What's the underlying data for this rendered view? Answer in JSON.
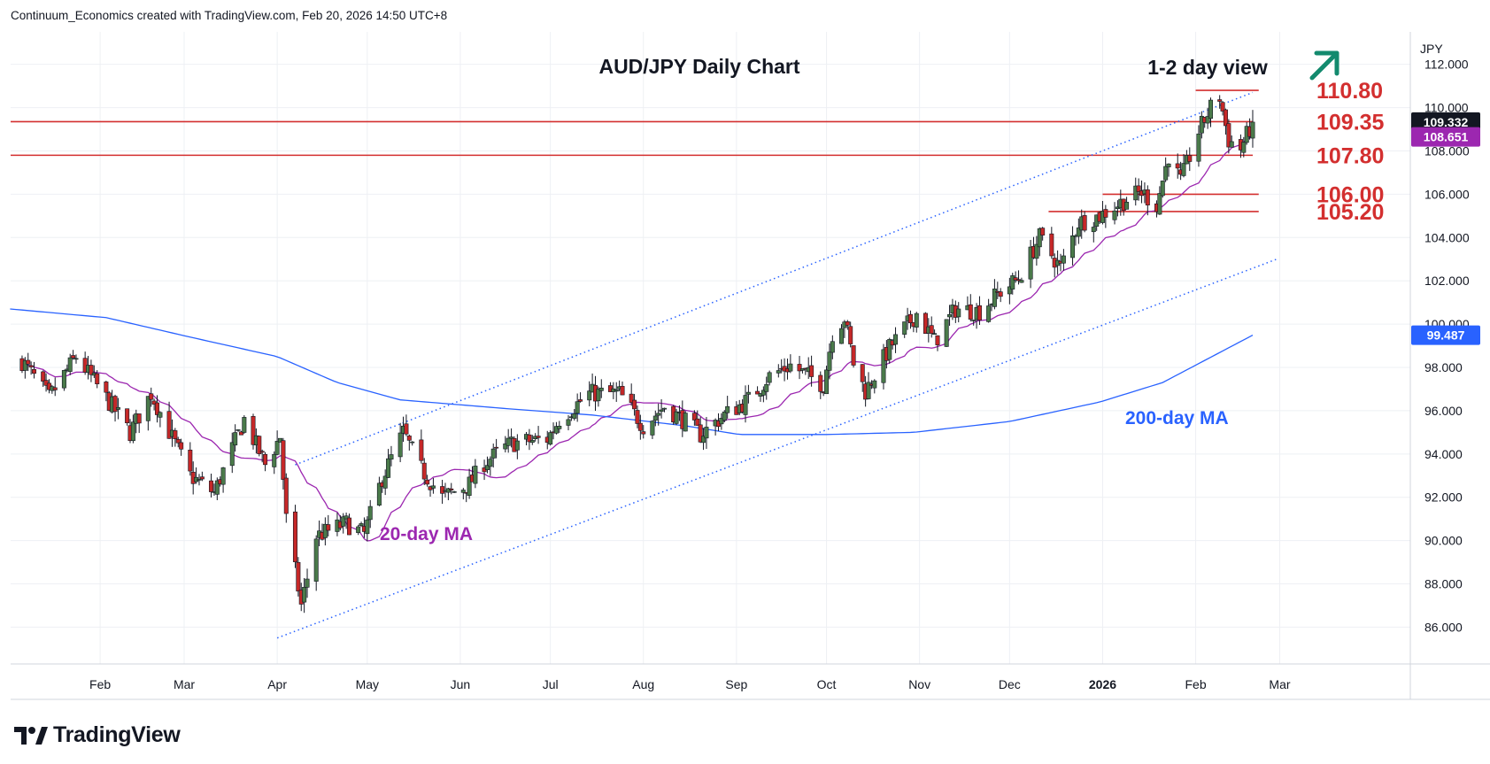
{
  "header": {
    "text": "Continuum_Economics created with TradingView.com, Feb 20, 2026 14:50 UTC+8"
  },
  "logo": {
    "text": "TradingView"
  },
  "chart_data": {
    "type": "candlestick",
    "title": "AUD/JPY Daily Chart",
    "subtitle": "1-2 day view",
    "view_arrow": "up-right-arrow",
    "currency_label": "JPY",
    "ylim": [
      84.3,
      113.5
    ],
    "y_ticks": [
      "112.000",
      "110.000",
      "108.000",
      "106.000",
      "104.000",
      "102.000",
      "100.000",
      "98.000",
      "96.000",
      "94.000",
      "92.000",
      "90.000",
      "88.000",
      "86.000"
    ],
    "x_ticks": [
      "Feb",
      "Mar",
      "Apr",
      "May",
      "Jun",
      "Jul",
      "Aug",
      "Sep",
      "Oct",
      "Nov",
      "Dec",
      "2026",
      "Feb",
      "Mar"
    ],
    "grid": true,
    "colors": {
      "up": "#4a7a4a",
      "down": "#c62828",
      "level": "#d32f2f",
      "ma20": "#9c27b0",
      "ma200": "#2962ff",
      "channel": "#2962ff",
      "arrow": "#138a6e",
      "price_badge": "#131722",
      "ma_badge": "#2962ff"
    },
    "price_labels": {
      "last": "109.332",
      "ma20": "108.651",
      "ma200": "99.487"
    },
    "levels": [
      {
        "label": "110.80",
        "value": 110.8
      },
      {
        "label": "109.35",
        "value": 109.35
      },
      {
        "label": "107.80",
        "value": 107.8
      },
      {
        "label": "106.00",
        "value": 106.0
      },
      {
        "label": "105.20",
        "value": 105.2
      }
    ],
    "annotations": {
      "ma20_label": "20-day MA",
      "ma200_label": "200-day MA"
    },
    "price_anchors": [
      [
        "2025-01-06",
        98.3
      ],
      [
        "2025-01-15",
        96.6
      ],
      [
        "2025-01-24",
        98.5
      ],
      [
        "2025-02-05",
        96.2
      ],
      [
        "2025-02-11",
        95.0
      ],
      [
        "2025-02-18",
        96.8
      ],
      [
        "2025-03-03",
        93.0
      ],
      [
        "2025-03-11",
        92.2
      ],
      [
        "2025-03-21",
        95.6
      ],
      [
        "2025-03-28",
        93.5
      ],
      [
        "2025-04-02",
        94.8
      ],
      [
        "2025-04-04",
        91.0
      ],
      [
        "2025-04-09",
        87.0
      ],
      [
        "2025-04-14",
        90.2
      ],
      [
        "2025-04-24",
        90.8
      ],
      [
        "2025-04-30",
        90.3
      ],
      [
        "2025-05-06",
        92.9
      ],
      [
        "2025-05-13",
        95.0
      ],
      [
        "2025-05-19",
        93.3
      ],
      [
        "2025-05-26",
        92.0
      ],
      [
        "2025-06-04",
        92.6
      ],
      [
        "2025-06-09",
        93.6
      ],
      [
        "2025-06-18",
        94.5
      ],
      [
        "2025-06-30",
        94.7
      ],
      [
        "2025-07-04",
        95.6
      ],
      [
        "2025-07-14",
        96.8
      ],
      [
        "2025-07-24",
        96.8
      ],
      [
        "2025-08-01",
        95.3
      ],
      [
        "2025-08-08",
        96.2
      ],
      [
        "2025-08-14",
        95.6
      ],
      [
        "2025-08-20",
        94.9
      ],
      [
        "2025-08-28",
        95.8
      ],
      [
        "2025-09-05",
        96.5
      ],
      [
        "2025-09-12",
        97.6
      ],
      [
        "2025-09-19",
        98.1
      ],
      [
        "2025-09-30",
        97.2
      ],
      [
        "2025-10-03",
        99.6
      ],
      [
        "2025-10-07",
        100.3
      ],
      [
        "2025-10-10",
        98.2
      ],
      [
        "2025-10-14",
        96.9
      ],
      [
        "2025-10-22",
        98.9
      ],
      [
        "2025-10-31",
        100.5
      ],
      [
        "2025-11-06",
        99.2
      ],
      [
        "2025-11-13",
        100.7
      ],
      [
        "2025-11-21",
        100.6
      ],
      [
        "2025-11-28",
        101.5
      ],
      [
        "2025-12-04",
        102.1
      ],
      [
        "2025-12-11",
        104.0
      ],
      [
        "2025-12-18",
        102.6
      ],
      [
        "2025-12-24",
        104.7
      ],
      [
        "2025-12-31",
        105.0
      ],
      [
        "2026-01-08",
        105.7
      ],
      [
        "2026-01-14",
        106.1
      ],
      [
        "2026-01-19",
        105.5
      ],
      [
        "2026-01-23",
        107.8
      ],
      [
        "2026-01-27",
        106.6
      ],
      [
        "2026-02-02",
        108.9
      ],
      [
        "2026-02-06",
        110.0
      ],
      [
        "2026-02-09",
        110.5
      ],
      [
        "2026-02-12",
        108.5
      ],
      [
        "2026-02-16",
        108.1
      ],
      [
        "2026-02-20",
        109.33
      ]
    ],
    "ma200_anchors": [
      [
        "2025-01-02",
        100.7
      ],
      [
        "2025-02-03",
        100.3
      ],
      [
        "2025-03-03",
        99.4
      ],
      [
        "2025-04-01",
        98.5
      ],
      [
        "2025-04-21",
        97.3
      ],
      [
        "2025-05-12",
        96.5
      ],
      [
        "2025-06-16",
        96.1
      ],
      [
        "2025-07-15",
        95.8
      ],
      [
        "2025-08-15",
        95.3
      ],
      [
        "2025-09-02",
        94.9
      ],
      [
        "2025-10-01",
        94.9
      ],
      [
        "2025-10-30",
        95.0
      ],
      [
        "2025-12-01",
        95.5
      ],
      [
        "2025-12-31",
        96.4
      ],
      [
        "2026-01-21",
        97.3
      ],
      [
        "2026-02-20",
        99.49
      ]
    ],
    "channel_upper": [
      [
        "2025-04-07",
        93.5
      ],
      [
        "2026-02-20",
        110.7
      ]
    ],
    "channel_lower": [
      [
        "2025-04-01",
        85.5
      ],
      [
        "2026-02-28",
        103.0
      ]
    ]
  }
}
